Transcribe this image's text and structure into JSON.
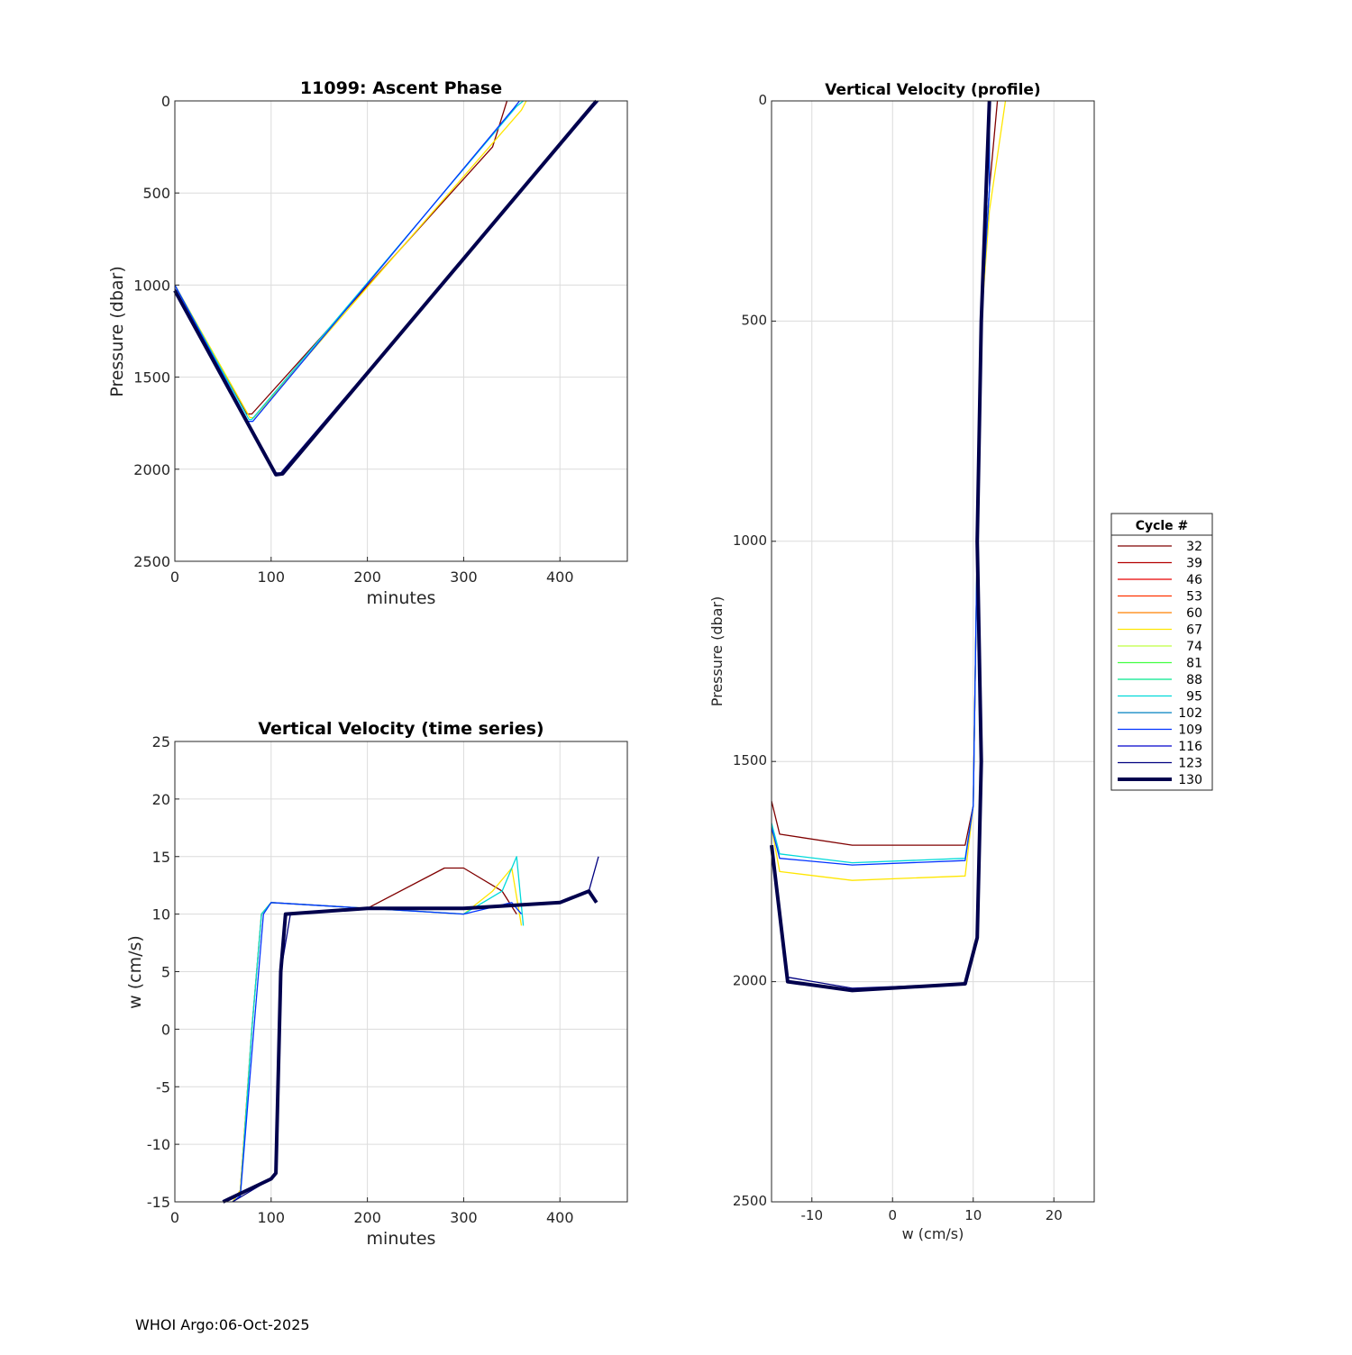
{
  "footer": "WHOI Argo:06-Oct-2025",
  "legend": {
    "title": "Cycle #",
    "entries": [
      "32",
      "39",
      "46",
      "53",
      "60",
      "67",
      "74",
      "81",
      "88",
      "95",
      "102",
      "109",
      "116",
      "123",
      "130"
    ],
    "colors": [
      "#800000",
      "#b30000",
      "#e60000",
      "#ff3300",
      "#ff8000",
      "#ffe600",
      "#bfff40",
      "#40ff40",
      "#00e68c",
      "#00d9d9",
      "#0080c0",
      "#0033ff",
      "#0000cc",
      "#000080",
      "#00004d"
    ]
  },
  "chart_data": [
    {
      "type": "line",
      "title": "11099: Ascent Phase",
      "xlabel": "minutes",
      "ylabel": "Pressure (dbar)",
      "xlim": [
        0,
        470
      ],
      "ylim": [
        0,
        2500
      ],
      "y_reversed": true,
      "xticks": [
        "0",
        "100",
        "200",
        "300",
        "400"
      ],
      "yticks": [
        "0",
        "500",
        "1000",
        "1500",
        "2000",
        "2500"
      ],
      "grid": true,
      "series": [
        {
          "name": "32",
          "x": [
            0,
            75,
            80,
            330,
            345
          ],
          "y": [
            1000,
            1700,
            1700,
            250,
            0
          ]
        },
        {
          "name": "67",
          "x": [
            0,
            78,
            82,
            360,
            365
          ],
          "y": [
            1000,
            1720,
            1720,
            50,
            0
          ]
        },
        {
          "name": "95",
          "x": [
            0,
            77,
            80,
            355,
            362
          ],
          "y": [
            1000,
            1730,
            1730,
            30,
            0
          ]
        },
        {
          "name": "109",
          "x": [
            0,
            76,
            81,
            352,
            358
          ],
          "y": [
            1000,
            1740,
            1740,
            40,
            0
          ]
        },
        {
          "name": "123",
          "x": [
            0,
            105,
            110,
            435,
            440
          ],
          "y": [
            1020,
            2020,
            2020,
            30,
            0
          ]
        },
        {
          "name": "130",
          "x": [
            0,
            105,
            112,
            433,
            438
          ],
          "y": [
            1030,
            2030,
            2025,
            30,
            0
          ]
        }
      ]
    },
    {
      "type": "line",
      "title": "Vertical Velocity (time series)",
      "xlabel": "minutes",
      "ylabel": "w (cm/s)",
      "xlim": [
        0,
        470
      ],
      "ylim": [
        -15,
        25
      ],
      "xticks": [
        "0",
        "100",
        "200",
        "300",
        "400"
      ],
      "yticks": [
        "25",
        "20",
        "15",
        "10",
        "5",
        "0",
        "-5",
        "-10",
        "-15"
      ],
      "grid": true,
      "series": [
        {
          "name": "32",
          "x": [
            60,
            68,
            80,
            90,
            100,
            200,
            280,
            300,
            340,
            355
          ],
          "y": [
            -15,
            -14,
            0,
            10,
            11,
            10.5,
            14,
            14,
            12,
            10
          ]
        },
        {
          "name": "67",
          "x": [
            60,
            68,
            80,
            90,
            100,
            200,
            300,
            330,
            350,
            360
          ],
          "y": [
            -15,
            -14,
            0,
            10,
            11,
            10.5,
            10,
            12,
            14,
            9
          ]
        },
        {
          "name": "95",
          "x": [
            60,
            68,
            80,
            90,
            100,
            200,
            300,
            340,
            355,
            362
          ],
          "y": [
            -15,
            -14.5,
            0,
            10,
            11,
            10.5,
            10,
            12,
            15,
            9
          ]
        },
        {
          "name": "109",
          "x": [
            60,
            68,
            82,
            92,
            100,
            200,
            300,
            350,
            360
          ],
          "y": [
            -15,
            -14.5,
            0,
            10,
            11,
            10.5,
            10,
            11,
            10
          ]
        },
        {
          "name": "123",
          "x": [
            60,
            100,
            105,
            110,
            120,
            200,
            300,
            400,
            430,
            440
          ],
          "y": [
            -15,
            -13,
            -12.5,
            5,
            10,
            10.5,
            10.5,
            11,
            12,
            15
          ]
        },
        {
          "name": "130",
          "x": [
            50,
            100,
            105,
            110,
            115,
            200,
            300,
            400,
            430,
            438
          ],
          "y": [
            -15,
            -13,
            -12.5,
            5,
            10,
            10.5,
            10.5,
            11,
            12,
            11
          ]
        }
      ]
    },
    {
      "type": "line",
      "title": "Vertical Velocity (profile)",
      "xlabel": "w (cm/s)",
      "ylabel": "Pressure (dbar)",
      "xlim": [
        -15,
        25
      ],
      "ylim": [
        0,
        2500
      ],
      "y_reversed": true,
      "xticks": [
        "-10",
        "0",
        "10",
        "20"
      ],
      "yticks": [
        "0",
        "500",
        "1000",
        "1500",
        "2000",
        "2500"
      ],
      "grid": true,
      "series": [
        {
          "name": "32",
          "x": [
            -15,
            -14,
            -5,
            9,
            10,
            10.5,
            11,
            12,
            13
          ],
          "y": [
            1590,
            1665,
            1690,
            1690,
            1600,
            1000,
            500,
            200,
            0
          ]
        },
        {
          "name": "67",
          "x": [
            -15,
            -14,
            -5,
            9,
            10,
            10.5,
            11,
            12,
            14
          ],
          "y": [
            1650,
            1750,
            1770,
            1760,
            1600,
            1000,
            500,
            250,
            0
          ]
        },
        {
          "name": "95",
          "x": [
            -15,
            -14,
            -5,
            9,
            10,
            10.5,
            11,
            12,
            12
          ],
          "y": [
            1640,
            1710,
            1730,
            1720,
            1600,
            1000,
            500,
            200,
            0
          ]
        },
        {
          "name": "109",
          "x": [
            -15,
            -14,
            -5,
            9,
            10,
            10.5,
            11,
            12,
            12
          ],
          "y": [
            1650,
            1720,
            1735,
            1725,
            1600,
            1000,
            500,
            200,
            0
          ]
        },
        {
          "name": "123",
          "x": [
            -15,
            -13,
            -5,
            9,
            10.5,
            11,
            10.5,
            11,
            12
          ],
          "y": [
            1700,
            1990,
            2015,
            2005,
            1900,
            1500,
            1000,
            500,
            0
          ]
        },
        {
          "name": "130",
          "x": [
            -15,
            -13,
            -5,
            9,
            10.5,
            11,
            10.5,
            11,
            12
          ],
          "y": [
            1690,
            2000,
            2020,
            2005,
            1900,
            1500,
            1000,
            500,
            0
          ]
        }
      ]
    }
  ]
}
